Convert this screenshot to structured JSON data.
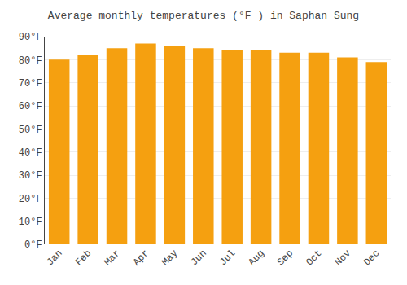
{
  "chart_data": {
    "type": "bar",
    "title": "Average monthly temperatures (°F ) in Saphan Sung",
    "categories": [
      "Jan",
      "Feb",
      "Mar",
      "Apr",
      "May",
      "Jun",
      "Jul",
      "Aug",
      "Sep",
      "Oct",
      "Nov",
      "Dec"
    ],
    "values": [
      80,
      82,
      85,
      87,
      86,
      85,
      84,
      84,
      83,
      83,
      81,
      79
    ],
    "color": "#F5A010",
    "ylim": [
      0,
      90
    ],
    "yticks": [
      {
        "value": 0,
        "label": "0°F"
      },
      {
        "value": 10,
        "label": "10°F"
      },
      {
        "value": 20,
        "label": "20°F"
      },
      {
        "value": 30,
        "label": "30°F"
      },
      {
        "value": 40,
        "label": "40°F"
      },
      {
        "value": 50,
        "label": "50°F"
      },
      {
        "value": 60,
        "label": "60°F"
      },
      {
        "value": 70,
        "label": "70°F"
      },
      {
        "value": 80,
        "label": "80°F"
      },
      {
        "value": 90,
        "label": "90°F"
      }
    ],
    "grid": true
  }
}
